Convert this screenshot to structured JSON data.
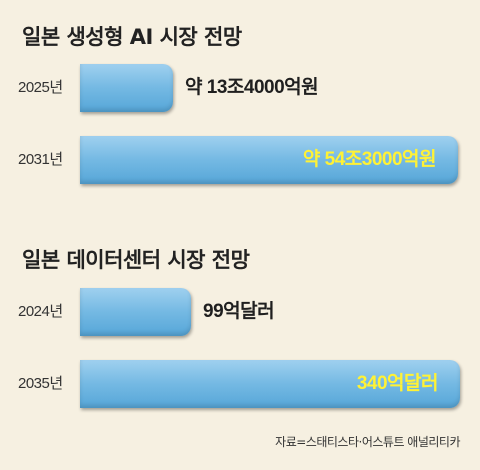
{
  "chart_data": [
    {
      "type": "bar",
      "title": "일본 생성형 AI 시장 전망",
      "categories": [
        "2025년",
        "2031년"
      ],
      "values": [
        13.4,
        54.3
      ],
      "value_labels": [
        "약 13조4000억원",
        "약 54조3000억원"
      ],
      "xlim": [
        0,
        55
      ]
    },
    {
      "type": "bar",
      "title": "일본 데이터센터 시장 전망",
      "categories": [
        "2024년",
        "2035년"
      ],
      "values": [
        99,
        340
      ],
      "value_labels": [
        "99억달러",
        "340억달러"
      ],
      "xlim": [
        0,
        343
      ]
    }
  ],
  "source": "자료=스태티스타·어스튜트 애널리티카",
  "colors": {
    "bar": "#74b9e3",
    "inside_label": "#fff235",
    "background": "#f6f0e1"
  }
}
